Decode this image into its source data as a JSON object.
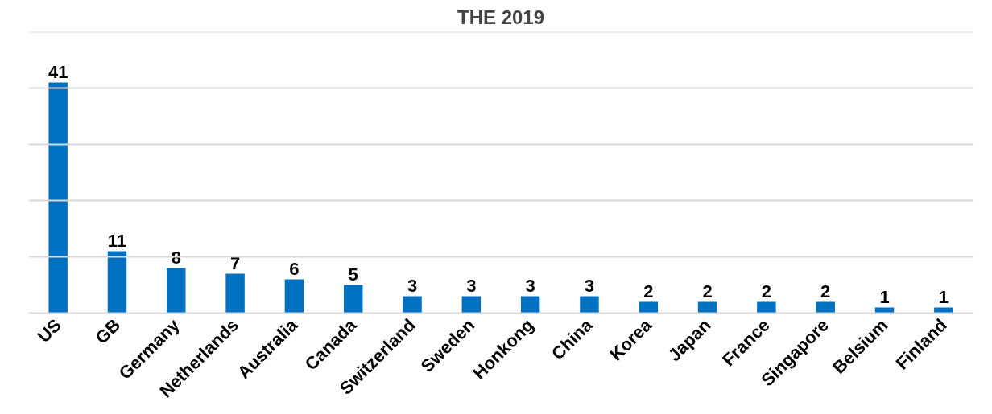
{
  "chart_data": {
    "type": "bar",
    "title": "THE 2019",
    "categories": [
      "US",
      "GB",
      "Germany",
      "Netherlands",
      "Australia",
      "Canada",
      "Switzerland",
      "Sweden",
      "Honkong",
      "China",
      "Korea",
      "Japan",
      "France",
      "Singapore",
      "Belsium",
      "Finland"
    ],
    "values": [
      41,
      11,
      8,
      7,
      6,
      5,
      3,
      3,
      3,
      3,
      2,
      2,
      2,
      2,
      1,
      1
    ],
    "color": "#0070c0",
    "ylim": [
      0,
      50
    ],
    "yticks": [
      {
        "value": 0,
        "label": null
      },
      {
        "value": 10,
        "label": null
      },
      {
        "value": 20,
        "label": null
      },
      {
        "value": 30,
        "label": null
      },
      {
        "value": 40,
        "label": null
      },
      {
        "value": 50,
        "label": null
      }
    ],
    "grid": "y",
    "tick_labels": "x",
    "data_labels": true,
    "legend": false
  }
}
